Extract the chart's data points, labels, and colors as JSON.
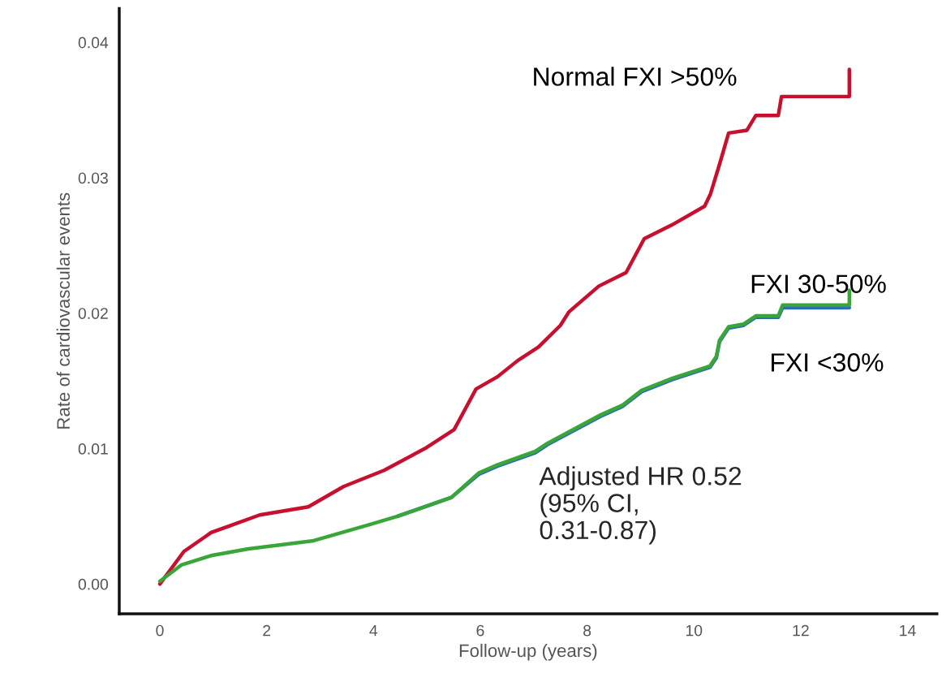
{
  "chart_data": {
    "type": "line",
    "xlabel": "Follow-up (years)",
    "ylabel": "Rate of cardiovascular events",
    "xlim": [
      -0.76,
      14.55
    ],
    "ylim": [
      -0.0022,
      0.0425
    ],
    "xticks": [
      0,
      2,
      4,
      6,
      8,
      10,
      12,
      14
    ],
    "yticks": [
      {
        "value": 0,
        "label": "0.00"
      },
      {
        "value": 0.01,
        "label": "0.01"
      },
      {
        "value": 0.02,
        "label": "0.02"
      },
      {
        "value": 0.03,
        "label": "0.03"
      },
      {
        "value": 0.04,
        "label": "0.04"
      }
    ],
    "grid": false,
    "legend": false,
    "annotations": [
      "Adjusted HR 0.52\n(95% CI,\n0.31-0.87)"
    ],
    "series": [
      {
        "name": "Normal FXI >50%",
        "color": "#c8102e",
        "x": [
          0,
          0.45,
          0.96,
          1.31,
          1.87,
          2.78,
          3.44,
          4.2,
          4.96,
          5.51,
          5.92,
          6.32,
          6.7,
          7.09,
          7.5,
          7.66,
          8.22,
          8.73,
          9.07,
          9.58,
          10.2,
          10.31,
          10.48,
          10.65,
          10.99,
          11.16,
          11.58,
          11.64,
          12.91,
          12.91
        ],
        "values": [
          0,
          0.0024,
          0.0038,
          0.0043,
          0.0051,
          0.0057,
          0.0072,
          0.0084,
          0.01,
          0.0114,
          0.0144,
          0.0153,
          0.0165,
          0.0175,
          0.0191,
          0.0201,
          0.022,
          0.023,
          0.0255,
          0.0265,
          0.0279,
          0.0288,
          0.031,
          0.0333,
          0.0335,
          0.0346,
          0.0346,
          0.036,
          0.036,
          0.038
        ]
      },
      {
        "name": "FXI <30%",
        "color": "#2c6db4",
        "x": [
          4.45,
          5.46,
          5.97,
          6.32,
          7.03,
          7.26,
          8.26,
          8.66,
          9.02,
          9.6,
          10.3,
          10.42,
          10.48,
          10.65,
          10.93,
          11.16,
          11.58,
          11.66,
          12.91
        ],
        "values": [
          0.005,
          0.0064,
          0.0081,
          0.0087,
          0.0097,
          0.0103,
          0.0124,
          0.0131,
          0.0142,
          0.0151,
          0.016,
          0.0167,
          0.0179,
          0.0189,
          0.0191,
          0.0197,
          0.0197,
          0.0204,
          0.0204
        ]
      },
      {
        "name": "FXI 30-50%",
        "color": "#3aa63a",
        "x": [
          0,
          0.4,
          0.96,
          1.66,
          2.88,
          3.94,
          4.45,
          5.46,
          5.97,
          6.32,
          7.03,
          7.26,
          8.26,
          8.66,
          9.02,
          9.6,
          10.3,
          10.42,
          10.48,
          10.65,
          10.93,
          11.16,
          11.58,
          11.66,
          12.91,
          12.91
        ],
        "values": [
          0.0002,
          0.0014,
          0.0021,
          0.0026,
          0.0032,
          0.0044,
          0.005,
          0.0064,
          0.0082,
          0.0088,
          0.0098,
          0.0104,
          0.0125,
          0.0132,
          0.0143,
          0.0152,
          0.0161,
          0.0168,
          0.018,
          0.019,
          0.0192,
          0.0198,
          0.0198,
          0.0206,
          0.0206,
          0.0217
        ]
      }
    ]
  }
}
